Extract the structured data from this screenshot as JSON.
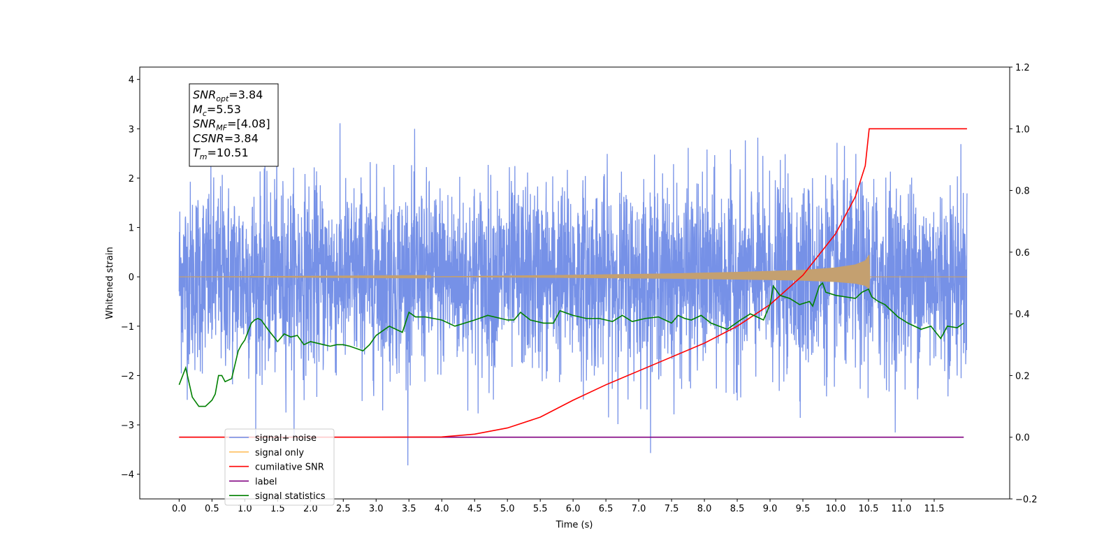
{
  "chart_data": {
    "type": "line",
    "xlabel": "Time (s)",
    "ylabel": "Whitened strain",
    "xlim": [
      -0.6,
      12.65
    ],
    "ylim": [
      -4.5,
      4.25
    ],
    "ylim_right": [
      -0.2,
      1.2
    ],
    "x_ticks": [
      0.0,
      0.5,
      1.0,
      1.5,
      2.0,
      2.5,
      3.0,
      3.5,
      4.0,
      4.5,
      5.0,
      5.5,
      6.0,
      6.5,
      7.0,
      7.5,
      8.0,
      8.5,
      9.0,
      9.5,
      10.0,
      10.5,
      11.0,
      11.5
    ],
    "x_tick_labels": [
      "0.0",
      "0.5",
      "1.0",
      "1.5",
      "2.0",
      "2.5",
      "3.0",
      "3.5",
      "4.0",
      "4.5",
      "5.0",
      "5.5",
      "6.0",
      "6.5",
      "7.0",
      "7.5",
      "8.0",
      "8.5",
      "9.0",
      "9.5",
      "10.0",
      "10.5",
      "11.0",
      "11.5"
    ],
    "y_ticks": [
      -4,
      -3,
      -2,
      -1,
      0,
      1,
      2,
      3,
      4
    ],
    "y_tick_labels": [
      "−4",
      "−3",
      "−2",
      "−1",
      "0",
      "1",
      "2",
      "3",
      "4"
    ],
    "y_right_ticks": [
      -0.2,
      0.0,
      0.2,
      0.4,
      0.6,
      0.8,
      1.0,
      1.2
    ],
    "y_right_tick_labels": [
      "−0.2",
      "0.0",
      "0.2",
      "0.4",
      "0.6",
      "0.8",
      "1.0",
      "1.2"
    ],
    "grid": false,
    "legend_position": "bottom-left",
    "legend": [
      {
        "label": "signal+ noise",
        "color": "#6f8be6"
      },
      {
        "label": "signal only",
        "color": "#ffbf5f"
      },
      {
        "label": "cumilative SNR",
        "color": "#ff0000"
      },
      {
        "label": "label",
        "color": "#800080"
      },
      {
        "label": "signal statistics",
        "color": "#008000"
      }
    ],
    "annotation": [
      {
        "base": "SNR",
        "sub": "opt",
        "rest": "=3.84"
      },
      {
        "base": "M",
        "sub": "c",
        "rest": "=5.53"
      },
      {
        "base": "SNR",
        "sub": "MF",
        "rest": "=[4.08]"
      },
      {
        "base": "CSNR",
        "sub": "",
        "rest": "=3.84"
      },
      {
        "base": "T",
        "sub": "m",
        "rest": "=10.51"
      }
    ],
    "series": [
      {
        "name": "signal+ noise",
        "axis": "left",
        "color": "#6f8be6",
        "description_range_y": [
          -4.1,
          3.85
        ],
        "x_range": [
          0.0,
          12.0
        ]
      },
      {
        "name": "signal only",
        "axis": "left",
        "color": "#c4a070",
        "x_range": [
          0.0,
          12.0
        ],
        "envelope_x": [
          0.0,
          4.0,
          6.0,
          7.5,
          8.5,
          9.5,
          10.0,
          10.3,
          10.45,
          10.51,
          10.52,
          12.0
        ],
        "envelope_y": [
          0.0,
          0.01,
          0.04,
          0.07,
          0.1,
          0.14,
          0.19,
          0.25,
          0.33,
          0.45,
          0.0,
          0.0
        ]
      },
      {
        "name": "cumilative SNR",
        "axis": "right",
        "color": "#ff0000",
        "x": [
          0.0,
          3.0,
          4.0,
          4.5,
          5.0,
          5.5,
          6.0,
          6.5,
          7.0,
          7.5,
          8.0,
          8.5,
          9.0,
          9.5,
          10.0,
          10.3,
          10.45,
          10.51,
          10.52,
          12.0
        ],
        "y": [
          0.0,
          0.0,
          0.001,
          0.01,
          0.03,
          0.065,
          0.12,
          0.17,
          0.215,
          0.26,
          0.305,
          0.36,
          0.43,
          0.525,
          0.66,
          0.78,
          0.88,
          1.0,
          1.0,
          1.0
        ]
      },
      {
        "name": "label",
        "axis": "right",
        "color": "#800080",
        "x": [
          0.0,
          11.95
        ],
        "y": [
          0.0,
          0.0
        ]
      },
      {
        "name": "signal statistics",
        "axis": "right",
        "color": "#008000",
        "x": [
          0.0,
          0.1,
          0.2,
          0.3,
          0.4,
          0.5,
          0.55,
          0.6,
          0.65,
          0.7,
          0.8,
          0.9,
          0.95,
          1.0,
          1.1,
          1.15,
          1.2,
          1.25,
          1.35,
          1.5,
          1.6,
          1.7,
          1.8,
          1.9,
          2.0,
          2.1,
          2.2,
          2.3,
          2.4,
          2.5,
          2.6,
          2.8,
          2.9,
          3.0,
          3.2,
          3.4,
          3.5,
          3.6,
          3.75,
          4.0,
          4.2,
          4.5,
          4.7,
          5.0,
          5.1,
          5.2,
          5.35,
          5.55,
          5.7,
          5.8,
          6.0,
          6.2,
          6.4,
          6.6,
          6.75,
          6.9,
          7.1,
          7.3,
          7.5,
          7.6,
          7.7,
          7.8,
          7.95,
          8.1,
          8.35,
          8.55,
          8.7,
          8.9,
          9.0,
          9.05,
          9.15,
          9.3,
          9.45,
          9.6,
          9.65,
          9.75,
          9.8,
          9.85,
          10.0,
          10.15,
          10.3,
          10.4,
          10.5,
          10.55,
          10.65,
          10.75,
          10.95,
          11.1,
          11.3,
          11.45,
          11.6,
          11.7,
          11.85,
          11.95
        ],
        "y": [
          0.17,
          0.225,
          0.13,
          0.1,
          0.1,
          0.12,
          0.14,
          0.2,
          0.2,
          0.18,
          0.19,
          0.28,
          0.3,
          0.315,
          0.37,
          0.38,
          0.385,
          0.38,
          0.35,
          0.31,
          0.335,
          0.325,
          0.33,
          0.3,
          0.31,
          0.305,
          0.3,
          0.295,
          0.3,
          0.3,
          0.295,
          0.28,
          0.3,
          0.33,
          0.36,
          0.34,
          0.405,
          0.39,
          0.39,
          0.38,
          0.36,
          0.38,
          0.395,
          0.38,
          0.38,
          0.405,
          0.38,
          0.37,
          0.37,
          0.41,
          0.395,
          0.385,
          0.385,
          0.375,
          0.395,
          0.375,
          0.385,
          0.39,
          0.37,
          0.395,
          0.385,
          0.38,
          0.395,
          0.37,
          0.35,
          0.38,
          0.4,
          0.38,
          0.43,
          0.49,
          0.46,
          0.45,
          0.43,
          0.44,
          0.425,
          0.49,
          0.5,
          0.47,
          0.46,
          0.455,
          0.45,
          0.47,
          0.48,
          0.455,
          0.44,
          0.43,
          0.39,
          0.37,
          0.35,
          0.36,
          0.32,
          0.36,
          0.355,
          0.37
        ]
      }
    ]
  }
}
